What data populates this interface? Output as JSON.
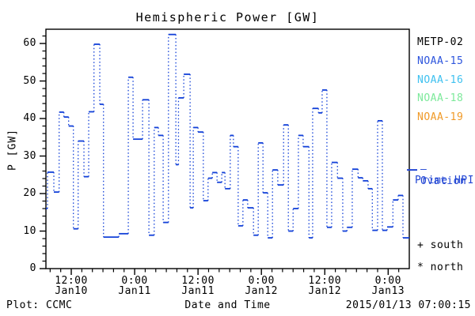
{
  "title": "Hemispheric Power [GW]",
  "axes": {
    "ylabel": "P [GW]",
    "xlabel": "Date and Time",
    "ylim": [
      0,
      63.8
    ],
    "yticks": [
      0,
      10,
      20,
      30,
      40,
      50,
      60
    ],
    "y_minor_step": 2,
    "xlim_hours": [
      0,
      68.8
    ],
    "x_minor_step_hours": 2,
    "xticks": [
      {
        "t": 4.8,
        "time": "12:00",
        "date": "Jan10"
      },
      {
        "t": 16.8,
        "time": "0:00",
        "date": "Jan11"
      },
      {
        "t": 28.8,
        "time": "12:00",
        "date": "Jan11"
      },
      {
        "t": 40.8,
        "time": "0:00",
        "date": "Jan12"
      },
      {
        "t": 52.8,
        "time": "12:00",
        "date": "Jan12"
      },
      {
        "t": 64.8,
        "time": "0:00",
        "date": "Jan13"
      }
    ],
    "frame_color": "#000000"
  },
  "legend": {
    "satellites": [
      {
        "label": "METP-02",
        "color": "#000000"
      },
      {
        "label": "NOAA-15",
        "color": "#2d55dd"
      },
      {
        "label": "NOAA-16",
        "color": "#3fc1f0"
      },
      {
        "label": "NOAA-18",
        "color": "#7de99b"
      },
      {
        "label": "NOAA-19",
        "color": "#f09a28"
      }
    ],
    "ovation": {
      "line1": "– Ovation",
      "line2": "Prime HPI",
      "color": "#2347d4",
      "edge_marker_value_gw": 26.3
    },
    "south_label": "+ south",
    "north_label": "* north"
  },
  "footer": {
    "left": "Plot: CCMC",
    "center": "Date and Time",
    "right": "2015/01/13 07:00:15"
  },
  "chart_data": {
    "type": "line",
    "style": "step: solid horizontal dwell segments joined by dotted vertical connectors",
    "series_name": "Ovation Prime HPI",
    "color": "#1240d8",
    "title": "Hemispheric Power [GW]",
    "xlabel": "Date and Time",
    "ylabel": "P [GW]",
    "ylim": [
      0,
      63.8
    ],
    "x_unit": "hours since 2015-01-10 ~07:00 UT",
    "x_end": 68.8,
    "points": [
      [
        0,
        16.0
      ],
      [
        0.3,
        25.7
      ],
      [
        1.5,
        20.4
      ],
      [
        2.5,
        41.7
      ],
      [
        3.4,
        40.4
      ],
      [
        4.3,
        38.0
      ],
      [
        5.2,
        10.6
      ],
      [
        6.1,
        34.0
      ],
      [
        7.2,
        24.5
      ],
      [
        8.1,
        41.8
      ],
      [
        9.1,
        59.8
      ],
      [
        10.2,
        43.8
      ],
      [
        10.9,
        8.4
      ],
      [
        13.8,
        9.3
      ],
      [
        15.6,
        51.0
      ],
      [
        16.5,
        34.5
      ],
      [
        18.3,
        45.0
      ],
      [
        19.5,
        8.9
      ],
      [
        20.5,
        37.6
      ],
      [
        21.3,
        35.5
      ],
      [
        22.2,
        12.3
      ],
      [
        23.2,
        62.4
      ],
      [
        24.6,
        27.7
      ],
      [
        25.1,
        45.5
      ],
      [
        26.1,
        51.8
      ],
      [
        27.3,
        16.2
      ],
      [
        27.9,
        37.6
      ],
      [
        28.8,
        36.4
      ],
      [
        29.8,
        18.1
      ],
      [
        30.7,
        24.1
      ],
      [
        31.5,
        25.6
      ],
      [
        32.4,
        23.0
      ],
      [
        33.3,
        25.6
      ],
      [
        33.9,
        21.3
      ],
      [
        34.9,
        35.5
      ],
      [
        35.5,
        32.5
      ],
      [
        36.4,
        11.4
      ],
      [
        37.3,
        18.3
      ],
      [
        38.2,
        16.2
      ],
      [
        39.3,
        8.9
      ],
      [
        40.2,
        33.5
      ],
      [
        41.1,
        20.2
      ],
      [
        42.0,
        8.2
      ],
      [
        42.9,
        26.3
      ],
      [
        43.9,
        22.3
      ],
      [
        45.0,
        38.3
      ],
      [
        45.9,
        10.0
      ],
      [
        46.8,
        16.0
      ],
      [
        47.8,
        35.5
      ],
      [
        48.7,
        32.5
      ],
      [
        49.8,
        8.2
      ],
      [
        50.5,
        42.7
      ],
      [
        51.6,
        41.5
      ],
      [
        52.3,
        47.6
      ],
      [
        53.2,
        11.0
      ],
      [
        54.1,
        28.3
      ],
      [
        55.2,
        24.1
      ],
      [
        56.2,
        10.0
      ],
      [
        57.0,
        11.0
      ],
      [
        58.0,
        26.5
      ],
      [
        59.1,
        24.2
      ],
      [
        60.0,
        23.4
      ],
      [
        61.0,
        21.3
      ],
      [
        61.8,
        10.2
      ],
      [
        62.8,
        39.4
      ],
      [
        63.7,
        10.2
      ],
      [
        64.6,
        11.1
      ],
      [
        65.7,
        18.3
      ],
      [
        66.7,
        19.5
      ],
      [
        67.6,
        8.2
      ]
    ]
  }
}
